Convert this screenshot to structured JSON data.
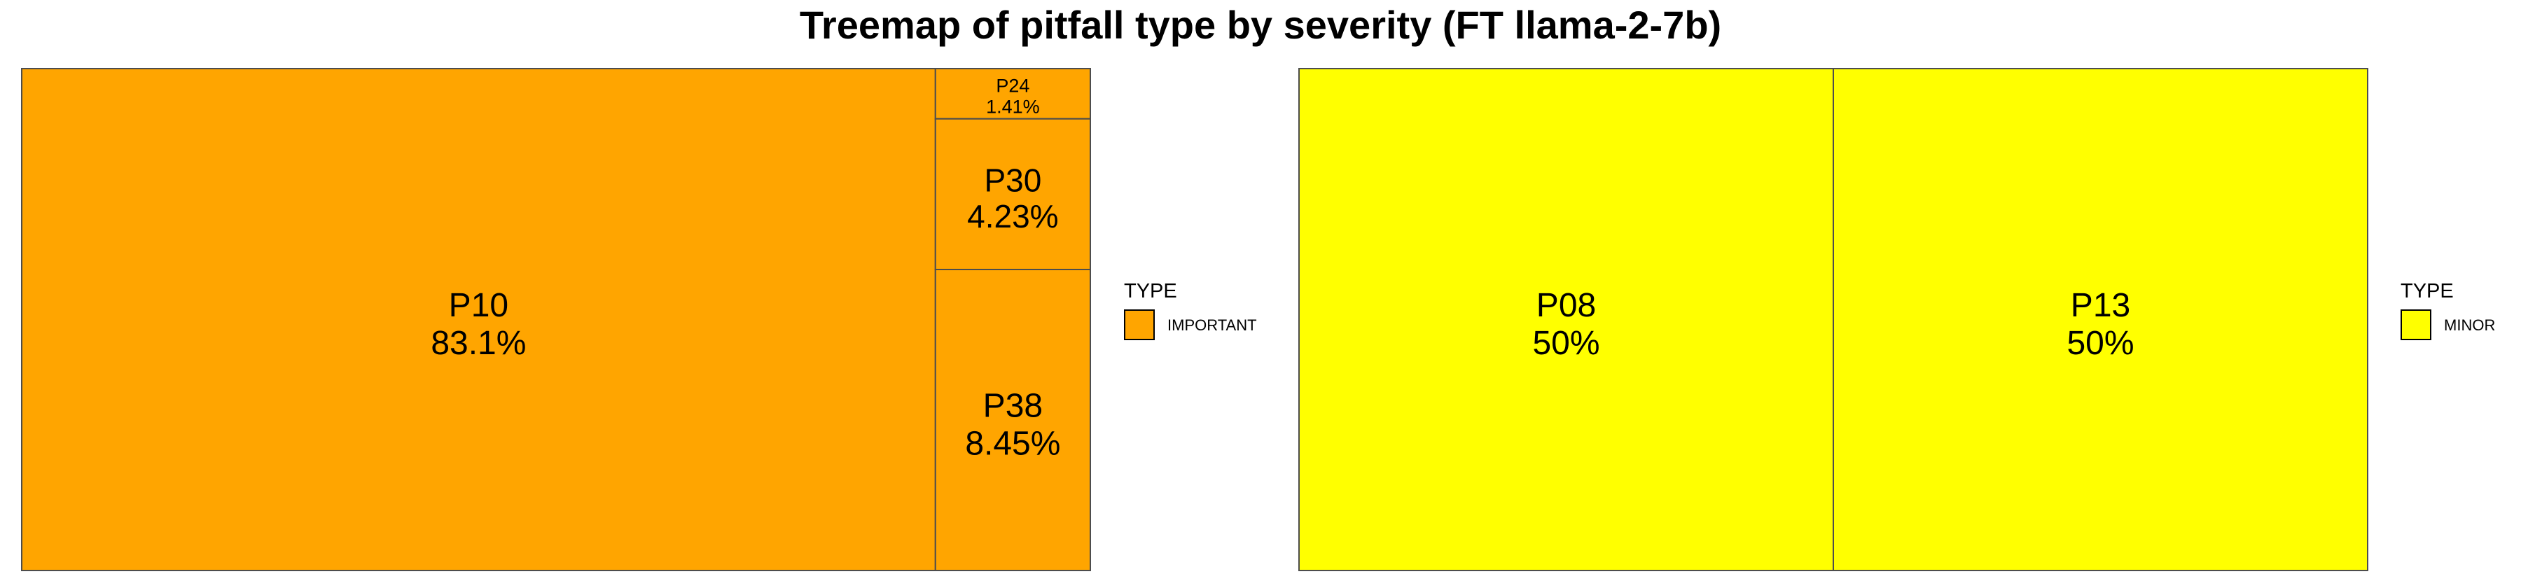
{
  "chart_data": {
    "type": "treemap",
    "title": "Treemap of pitfall type by severity (FT llama-2-7b)",
    "panels": [
      {
        "legend_title": "TYPE",
        "legend_label": "IMPORTANT",
        "color": "#FFA500",
        "tiles": [
          {
            "name": "P10",
            "percent": "83.1%",
            "value": 83.1
          },
          {
            "name": "P24",
            "percent": "1.41%",
            "value": 1.41
          },
          {
            "name": "P30",
            "percent": "4.23%",
            "value": 4.23
          },
          {
            "name": "P38",
            "percent": "8.45%",
            "value": 8.45
          }
        ]
      },
      {
        "legend_title": "TYPE",
        "legend_label": "MINOR",
        "color": "#FFFF00",
        "tiles": [
          {
            "name": "P08",
            "percent": "50%",
            "value": 50
          },
          {
            "name": "P13",
            "percent": "50%",
            "value": 50
          }
        ]
      }
    ]
  }
}
